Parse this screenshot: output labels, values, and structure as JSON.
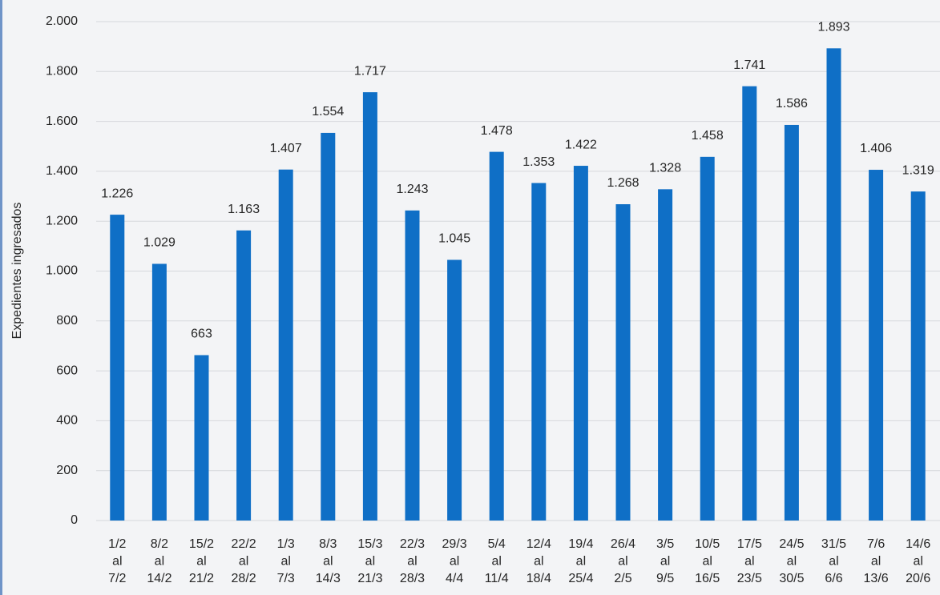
{
  "chart_data": {
    "type": "bar",
    "y_label": "Expedientes ingresados",
    "categories": [
      "1/2 al 7/2",
      "8/2 al 14/2",
      "15/2 al 21/2",
      "22/2 al 28/2",
      "1/3 al 7/3",
      "8/3 al 14/3",
      "15/3 al 21/3",
      "22/3 al 28/3",
      "29/3 al 4/4",
      "5/4 al 11/4",
      "12/4 al 18/4",
      "19/4 al 25/4",
      "26/4 al 2/5",
      "3/5 al 9/5",
      "10/5 al 16/5",
      "17/5 al 23/5",
      "24/5 al 30/5",
      "31/5 al 6/6",
      "7/6 al 13/6",
      "14/6 al 20/6"
    ],
    "values": [
      1226,
      1029,
      663,
      1163,
      1407,
      1554,
      1717,
      1243,
      1045,
      1478,
      1353,
      1422,
      1268,
      1328,
      1458,
      1741,
      1586,
      1893,
      1406,
      1319
    ],
    "value_labels": [
      "1.226",
      "1.029",
      "663",
      "1.163",
      "1.407",
      "1.554",
      "1.717",
      "1.243",
      "1.045",
      "1.478",
      "1.353",
      "1.422",
      "1.268",
      "1.328",
      "1.458",
      "1.741",
      "1.586",
      "1.893",
      "1.406",
      "1.319"
    ],
    "color": "#0f6fc6",
    "ylim": [
      0,
      2000
    ],
    "yticks": [
      0,
      200,
      400,
      600,
      800,
      {
        "value": 1000,
        "label": "1.000"
      },
      {
        "value": 1200,
        "label": "1.200"
      },
      {
        "value": 1400,
        "label": "1.400"
      },
      {
        "value": 1600,
        "label": "1.600"
      },
      {
        "value": 1800,
        "label": "1.800"
      },
      {
        "value": 2000,
        "label": "2.000"
      }
    ],
    "grid": true
  }
}
